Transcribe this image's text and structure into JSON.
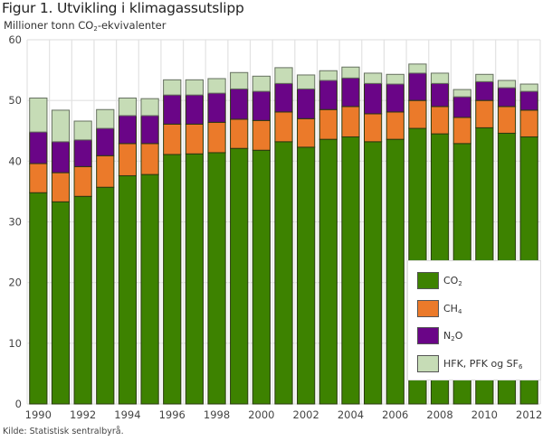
{
  "header": {
    "title": "Figur 1. Utvikling i klimagassutslipp",
    "subtitle_pre": "Millioner tonn CO",
    "subtitle_sub": "2",
    "subtitle_post": "-ekvivalenter"
  },
  "footer": {
    "source": "Kilde: Statistisk sentralbyrå."
  },
  "legend_labels": [
    {
      "main": "CO",
      "sub": "2",
      "post": ""
    },
    {
      "main": "CH",
      "sub": "4",
      "post": ""
    },
    {
      "main": "N",
      "sub": "2",
      "post": "O"
    },
    {
      "main": "HFK, PFK og SF",
      "sub": "6",
      "post": ""
    }
  ],
  "chart_data": {
    "type": "bar",
    "stacked": true,
    "title": "Figur 1. Utvikling i klimagassutslipp",
    "ylabel": "Millioner tonn CO2-ekvivalenter",
    "xlabel": "",
    "ylim": [
      0,
      60
    ],
    "yticks": [
      0,
      10,
      20,
      30,
      40,
      50,
      60
    ],
    "grid": true,
    "legend_position": "bottom-right",
    "categories": [
      "1990",
      "1991",
      "1992",
      "1993",
      "1994",
      "1995",
      "1996",
      "1997",
      "1998",
      "1999",
      "2000",
      "2001",
      "2002",
      "2003",
      "2004",
      "2005",
      "2006",
      "2007",
      "2008",
      "2009",
      "2010",
      "2011",
      "2012"
    ],
    "xtick_labels": [
      "1990",
      "1992",
      "1994",
      "1996",
      "1998",
      "2000",
      "2002",
      "2004",
      "2006",
      "2008",
      "2010",
      "2012"
    ],
    "series": [
      {
        "name": "CO2",
        "color": "#3d8200",
        "values": [
          34.8,
          33.3,
          34.2,
          35.7,
          37.6,
          37.8,
          41.1,
          41.2,
          41.4,
          42.1,
          41.8,
          43.2,
          42.3,
          43.6,
          44.0,
          43.2,
          43.6,
          45.4,
          44.5,
          42.9,
          45.5,
          44.6,
          44.0
        ]
      },
      {
        "name": "CH4",
        "color": "#eb7a2a",
        "values": [
          4.8,
          4.8,
          4.9,
          5.2,
          5.3,
          5.1,
          5.0,
          4.9,
          5.0,
          4.8,
          4.9,
          4.9,
          4.7,
          4.9,
          5.0,
          4.6,
          4.5,
          4.6,
          4.5,
          4.3,
          4.5,
          4.4,
          4.4
        ]
      },
      {
        "name": "N2O",
        "color": "#6a0587",
        "values": [
          5.2,
          5.1,
          4.4,
          4.5,
          4.6,
          4.6,
          4.8,
          4.8,
          4.8,
          5.0,
          4.8,
          4.7,
          4.9,
          4.8,
          4.7,
          5.0,
          4.6,
          4.5,
          3.8,
          3.4,
          3.1,
          3.1,
          3.1
        ]
      },
      {
        "name": "HFK, PFK og SF6",
        "color": "#c6dcb6",
        "values": [
          5.6,
          5.2,
          3.1,
          3.1,
          2.9,
          2.8,
          2.5,
          2.5,
          2.4,
          2.7,
          2.5,
          2.6,
          2.3,
          1.6,
          1.8,
          1.7,
          1.6,
          1.5,
          1.7,
          1.2,
          1.2,
          1.2,
          1.2
        ]
      }
    ]
  }
}
